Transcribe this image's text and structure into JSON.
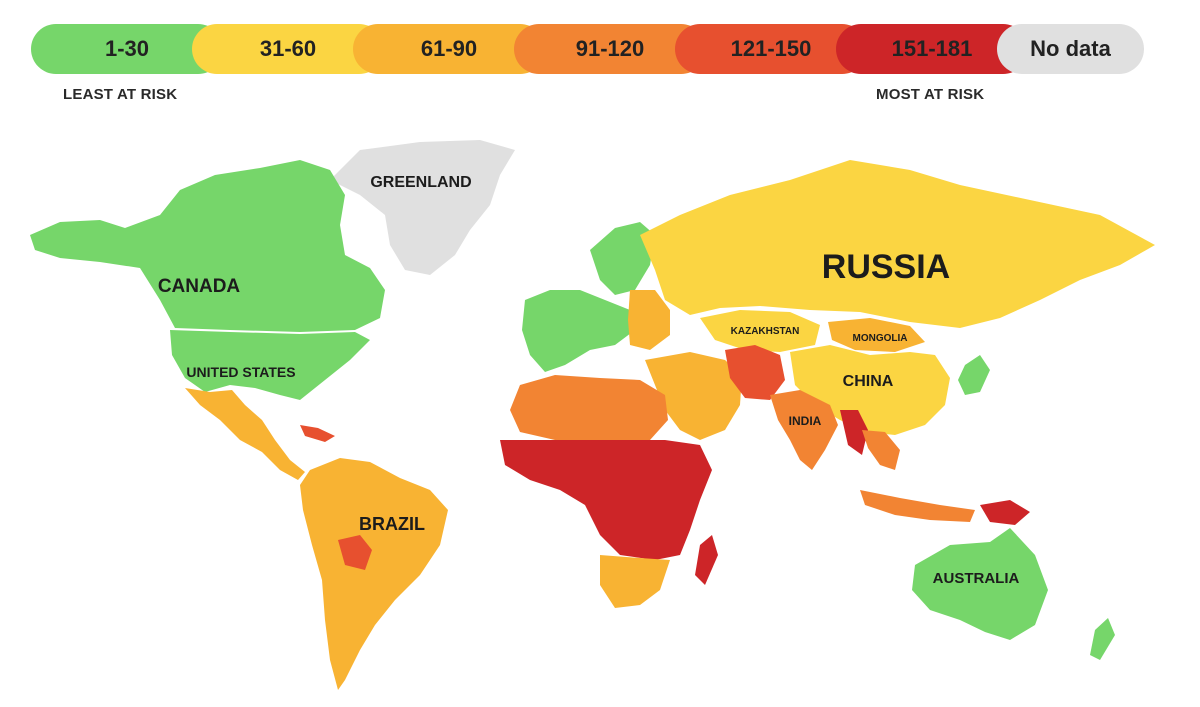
{
  "legend": {
    "ranges": [
      {
        "label": "1-30",
        "color": "#76d66a"
      },
      {
        "label": "31-60",
        "color": "#fbd542"
      },
      {
        "label": "61-90",
        "color": "#f8b333"
      },
      {
        "label": "91-120",
        "color": "#f28433"
      },
      {
        "label": "121-150",
        "color": "#e7502f"
      },
      {
        "label": "151-181",
        "color": "#cd2528"
      },
      {
        "label": "No data",
        "color": "#e0e0e0"
      }
    ],
    "least": "LEAST AT RISK",
    "most": "MOST AT RISK"
  },
  "labels": {
    "greenland": "GREENLAND",
    "canada": "CANADA",
    "united_states": "UNITED STATES",
    "russia": "RUSSIA",
    "kazakhstan": "KAZAKHSTAN",
    "mongolia": "MONGOLIA",
    "china": "CHINA",
    "india": "INDIA",
    "brazil": "BRAZIL",
    "australia": "AUSTRALIA"
  }
}
